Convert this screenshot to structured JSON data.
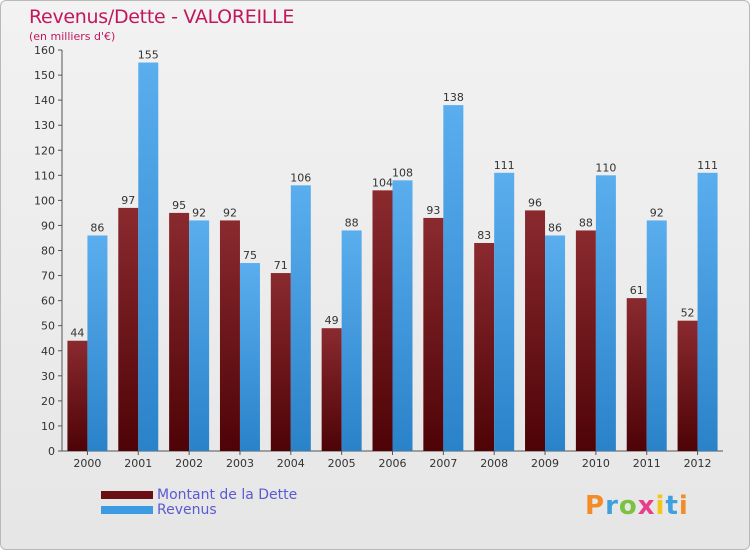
{
  "title": "Revenus/Dette - VALOREILLE",
  "subtitle": "(en milliers d'€)",
  "logo": {
    "text": "Proxiti",
    "letters": [
      {
        "ch": "P",
        "color": "#f28c28"
      },
      {
        "ch": "r",
        "color": "#3fa0e0"
      },
      {
        "ch": "o",
        "color": "#7cc242"
      },
      {
        "ch": "x",
        "color": "#e83e8c"
      },
      {
        "ch": "i",
        "color": "#f5c518"
      },
      {
        "ch": "t",
        "color": "#3fa0e0"
      },
      {
        "ch": "i",
        "color": "#f28c28"
      }
    ]
  },
  "legend": {
    "items": [
      {
        "label": "Montant de la Dette",
        "color": "#6b0f14"
      },
      {
        "label": "Revenus",
        "color": "#3d9be3"
      }
    ]
  },
  "chart_data": {
    "type": "bar",
    "categories": [
      "2000",
      "2001",
      "2002",
      "2003",
      "2004",
      "2005",
      "2006",
      "2007",
      "2008",
      "2009",
      "2010",
      "2011",
      "2012"
    ],
    "series": [
      {
        "name": "Montant de la Dette",
        "color": "#6b0f14",
        "values": [
          44,
          97,
          95,
          92,
          71,
          49,
          104,
          93,
          83,
          96,
          88,
          61,
          52
        ]
      },
      {
        "name": "Revenus",
        "color": "#3d9be3",
        "values": [
          86,
          155,
          92,
          75,
          106,
          88,
          108,
          138,
          111,
          86,
          110,
          92,
          111
        ]
      }
    ],
    "ylim": [
      0,
      160
    ],
    "yticks": [
      0,
      10,
      20,
      30,
      40,
      50,
      60,
      70,
      80,
      90,
      100,
      110,
      120,
      130,
      140,
      150,
      160
    ],
    "grid": false,
    "legend_position": "bottom-left"
  }
}
